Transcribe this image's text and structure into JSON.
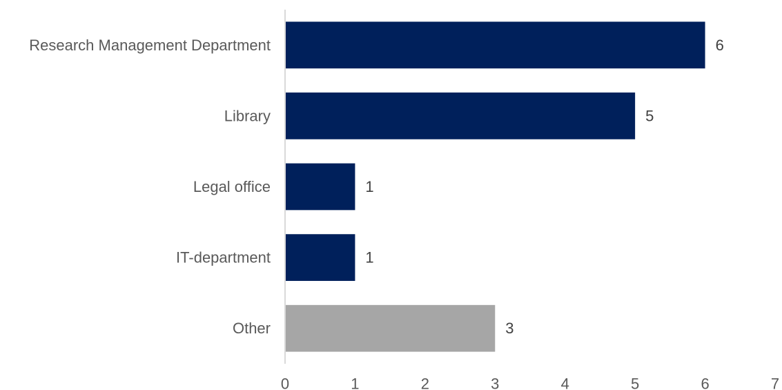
{
  "chart_data": {
    "type": "bar",
    "orientation": "horizontal",
    "title": "",
    "xlabel": "",
    "ylabel": "",
    "categories": [
      "Research Management Department",
      "Library",
      "Legal office",
      "IT-department",
      "Other"
    ],
    "values": [
      6,
      5,
      1,
      1,
      3
    ],
    "bar_colors": [
      "#00205b",
      "#00205b",
      "#00205b",
      "#00205b",
      "#a6a6a6"
    ],
    "xlim": [
      0,
      7
    ],
    "x_ticks": [
      "0",
      "1",
      "2",
      "3",
      "4",
      "5",
      "6",
      "7"
    ],
    "grid": false,
    "legend": "none",
    "data_labels": true,
    "axis_color": "#d9d9d9"
  }
}
